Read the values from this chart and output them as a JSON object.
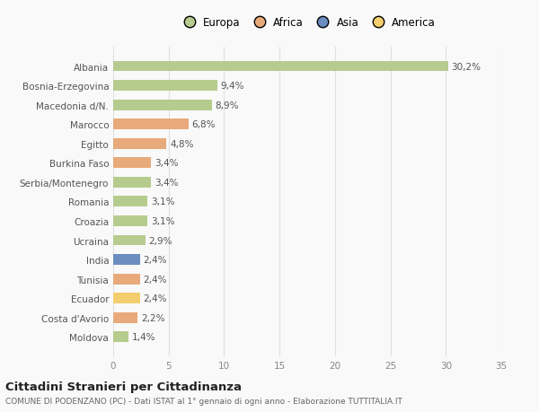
{
  "categories": [
    "Albania",
    "Bosnia-Erzegovina",
    "Macedonia d/N.",
    "Marocco",
    "Egitto",
    "Burkina Faso",
    "Serbia/Montenegro",
    "Romania",
    "Croazia",
    "Ucraina",
    "India",
    "Tunisia",
    "Ecuador",
    "Costa d'Avorio",
    "Moldova"
  ],
  "values": [
    30.2,
    9.4,
    8.9,
    6.8,
    4.8,
    3.4,
    3.4,
    3.1,
    3.1,
    2.9,
    2.4,
    2.4,
    2.4,
    2.2,
    1.4
  ],
  "labels": [
    "30,2%",
    "9,4%",
    "8,9%",
    "6,8%",
    "4,8%",
    "3,4%",
    "3,4%",
    "3,1%",
    "3,1%",
    "2,9%",
    "2,4%",
    "2,4%",
    "2,4%",
    "2,2%",
    "1,4%"
  ],
  "colors": [
    "#b5cc8e",
    "#b5cc8e",
    "#b5cc8e",
    "#e8aa7a",
    "#e8aa7a",
    "#e8aa7a",
    "#b5cc8e",
    "#b5cc8e",
    "#b5cc8e",
    "#b5cc8e",
    "#6b8dc0",
    "#e8aa7a",
    "#f2ce6e",
    "#e8aa7a",
    "#b5cc8e"
  ],
  "legend_labels": [
    "Europa",
    "Africa",
    "Asia",
    "America"
  ],
  "legend_colors": [
    "#b5cc8e",
    "#e8aa7a",
    "#6b8dc0",
    "#f2ce6e"
  ],
  "title": "Cittadini Stranieri per Cittadinanza",
  "subtitle": "COMUNE DI PODENZANO (PC) - Dati ISTAT al 1° gennaio di ogni anno - Elaborazione TUTTITALIA.IT",
  "xlim": [
    0,
    35
  ],
  "xticks": [
    0,
    5,
    10,
    15,
    20,
    25,
    30,
    35
  ],
  "bg_color": "#f9f9f9",
  "bar_height": 0.55,
  "grid_color": "#e0e0e0"
}
